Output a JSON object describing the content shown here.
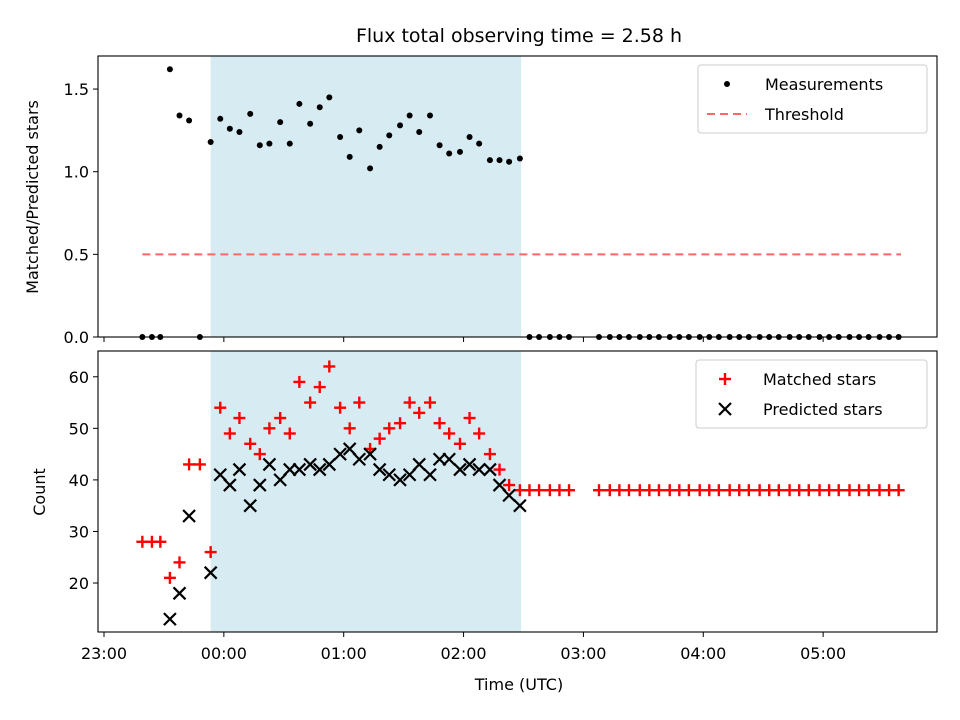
{
  "chart_data": {
    "type": "scatter",
    "title": "Flux total observing time = 2.58 h",
    "xlabel": "Time (UTC)",
    "x_unit": "hours since 00:00 UTC",
    "xlim": [
      -1.05,
      5.95
    ],
    "x_ticks": [
      {
        "value": -1,
        "label": "23:00"
      },
      {
        "value": 0,
        "label": "00:00"
      },
      {
        "value": 1,
        "label": "01:00"
      },
      {
        "value": 2,
        "label": "02:00"
      },
      {
        "value": 3,
        "label": "03:00"
      },
      {
        "value": 4,
        "label": "04:00"
      },
      {
        "value": 5,
        "label": "05:00"
      }
    ],
    "observing_window": {
      "start": -0.11,
      "end": 2.48,
      "color": "#add8e6"
    },
    "top_panel": {
      "ylabel": "Matched/Predicted stars",
      "ylim": [
        0,
        1.7
      ],
      "y_ticks": [
        {
          "value": 0,
          "label": "0.0"
        },
        {
          "value": 0.5,
          "label": "0.5"
        },
        {
          "value": 1.0,
          "label": "1.0"
        },
        {
          "value": 1.5,
          "label": "1.5"
        }
      ],
      "legend": {
        "position": "upper right",
        "labels": [
          "Measurements",
          "Threshold"
        ]
      },
      "threshold": {
        "name": "Threshold",
        "y": 0.5,
        "x_range": [
          -0.68,
          5.65
        ],
        "color": "#ff6666"
      },
      "measurements": {
        "name": "Measurements",
        "color": "#000000",
        "x": [
          -0.68,
          -0.6,
          -0.53,
          -0.45,
          -0.37,
          -0.29,
          -0.2,
          -0.11,
          -0.03,
          0.05,
          0.13,
          0.22,
          0.3,
          0.38,
          0.47,
          0.55,
          0.63,
          0.72,
          0.8,
          0.88,
          0.97,
          1.05,
          1.13,
          1.22,
          1.3,
          1.38,
          1.47,
          1.55,
          1.63,
          1.72,
          1.8,
          1.88,
          1.97,
          2.05,
          2.13,
          2.22,
          2.3,
          2.38,
          2.47,
          2.55,
          2.63,
          2.72,
          2.8,
          2.88,
          3.13,
          3.22,
          3.3,
          3.38,
          3.47,
          3.55,
          3.63,
          3.72,
          3.8,
          3.88,
          3.97,
          4.05,
          4.13,
          4.22,
          4.3,
          4.38,
          4.47,
          4.55,
          4.63,
          4.72,
          4.8,
          4.88,
          4.97,
          5.05,
          5.13,
          5.22,
          5.3,
          5.38,
          5.47,
          5.55,
          5.63
        ],
        "y": [
          0,
          0,
          0,
          1.62,
          1.34,
          1.31,
          0,
          1.18,
          1.32,
          1.26,
          1.24,
          1.35,
          1.16,
          1.17,
          1.3,
          1.17,
          1.41,
          1.29,
          1.39,
          1.45,
          1.21,
          1.09,
          1.25,
          1.02,
          1.15,
          1.22,
          1.28,
          1.34,
          1.24,
          1.34,
          1.16,
          1.11,
          1.12,
          1.21,
          1.17,
          1.07,
          1.07,
          1.06,
          1.08,
          0,
          0,
          0,
          0,
          0,
          0,
          0,
          0,
          0,
          0,
          0,
          0,
          0,
          0,
          0,
          0,
          0,
          0,
          0,
          0,
          0,
          0,
          0,
          0,
          0,
          0,
          0,
          0,
          0,
          0,
          0,
          0,
          0,
          0,
          0,
          0
        ]
      }
    },
    "bottom_panel": {
      "ylabel": "Count",
      "ylim": [
        10.5,
        65
      ],
      "y_ticks": [
        {
          "value": 20,
          "label": "20"
        },
        {
          "value": 30,
          "label": "30"
        },
        {
          "value": 40,
          "label": "40"
        },
        {
          "value": 50,
          "label": "50"
        },
        {
          "value": 60,
          "label": "60"
        }
      ],
      "legend": {
        "position": "upper right",
        "labels": [
          "Matched stars",
          "Predicted stars"
        ]
      },
      "series": [
        {
          "name": "Matched stars",
          "marker": "+",
          "color": "#ff0000",
          "x": [
            -0.68,
            -0.6,
            -0.53,
            -0.45,
            -0.37,
            -0.29,
            -0.2,
            -0.11,
            -0.03,
            0.05,
            0.13,
            0.22,
            0.3,
            0.38,
            0.47,
            0.55,
            0.63,
            0.72,
            0.8,
            0.88,
            0.97,
            1.05,
            1.13,
            1.22,
            1.3,
            1.38,
            1.47,
            1.55,
            1.63,
            1.72,
            1.8,
            1.88,
            1.97,
            2.05,
            2.13,
            2.22,
            2.3,
            2.38,
            2.47,
            2.55,
            2.63,
            2.72,
            2.8,
            2.88,
            3.13,
            3.22,
            3.3,
            3.38,
            3.47,
            3.55,
            3.63,
            3.72,
            3.8,
            3.88,
            3.97,
            4.05,
            4.13,
            4.22,
            4.3,
            4.38,
            4.47,
            4.55,
            4.63,
            4.72,
            4.8,
            4.88,
            4.97,
            5.05,
            5.13,
            5.22,
            5.3,
            5.38,
            5.47,
            5.55,
            5.63
          ],
          "y": [
            28,
            28,
            28,
            21,
            24,
            43,
            43,
            26,
            54,
            49,
            52,
            47,
            45,
            50,
            52,
            49,
            59,
            55,
            58,
            62,
            54,
            50,
            55,
            46,
            48,
            50,
            51,
            55,
            53,
            55,
            51,
            49,
            47,
            52,
            49,
            45,
            42,
            39,
            38,
            38,
            38,
            38,
            38,
            38,
            38,
            38,
            38,
            38,
            38,
            38,
            38,
            38,
            38,
            38,
            38,
            38,
            38,
            38,
            38,
            38,
            38,
            38,
            38,
            38,
            38,
            38,
            38,
            38,
            38,
            38,
            38,
            38,
            38,
            38,
            38
          ]
        },
        {
          "name": "Predicted stars",
          "marker": "x",
          "color": "#000000",
          "x": [
            -0.45,
            -0.37,
            -0.29,
            -0.11,
            -0.03,
            0.05,
            0.13,
            0.22,
            0.3,
            0.38,
            0.47,
            0.55,
            0.63,
            0.72,
            0.8,
            0.88,
            0.97,
            1.05,
            1.13,
            1.22,
            1.3,
            1.38,
            1.47,
            1.55,
            1.63,
            1.72,
            1.8,
            1.88,
            1.97,
            2.05,
            2.13,
            2.22,
            2.3,
            2.38,
            2.47
          ],
          "y": [
            13,
            18,
            33,
            22,
            41,
            39,
            42,
            35,
            39,
            43,
            40,
            42,
            42,
            43,
            42,
            43,
            45,
            46,
            44,
            45,
            42,
            41,
            40,
            41,
            43,
            41,
            44,
            44,
            42,
            43,
            42,
            42,
            39,
            37,
            35
          ]
        }
      ]
    }
  }
}
